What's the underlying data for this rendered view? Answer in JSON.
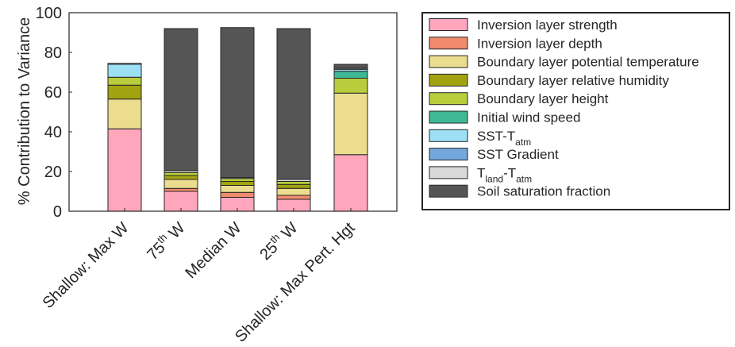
{
  "chart_data": {
    "type": "bar",
    "stacked": true,
    "ylabel": "% Contribution to Variance",
    "ylim": [
      0,
      100
    ],
    "yticks": [
      "0",
      "20",
      "40",
      "60",
      "80",
      "100"
    ],
    "grid": false,
    "legend_position": "right",
    "categories": [
      {
        "base": "Shallow: Max W",
        "sup": ""
      },
      {
        "base": "75",
        "sup": "th",
        "tail": " W"
      },
      {
        "base": "Median W",
        "sup": ""
      },
      {
        "base": "25",
        "sup": "th",
        "tail": " W"
      },
      {
        "base": "Shallow: Max Pert. Hgt",
        "sup": ""
      }
    ],
    "series": [
      {
        "name": "Inversion layer strength",
        "color": "#ffa6bc",
        "values": [
          41.5,
          10.0,
          7.0,
          6.0,
          28.5
        ]
      },
      {
        "name": "Inversion layer depth",
        "color": "#f08a6c",
        "values": [
          0,
          1.5,
          2.5,
          2.0,
          0
        ]
      },
      {
        "name": "Boundary layer potential temperature",
        "color": "#ecdc8e",
        "values": [
          15.0,
          4.5,
          3.5,
          3.5,
          31.0
        ]
      },
      {
        "name": "Boundary layer relative humidity",
        "color": "#a3a312",
        "values": [
          7.0,
          2.0,
          2.0,
          2.0,
          0
        ]
      },
      {
        "name": "Boundary layer height",
        "color": "#b9cd3c",
        "values": [
          4.0,
          1.5,
          1.5,
          1.5,
          7.5
        ]
      },
      {
        "name": "Initial wind speed",
        "color": "#3fb995",
        "values": [
          0,
          0,
          0,
          0,
          3.5
        ]
      },
      {
        "name": "SST-T",
        "sub": "atm",
        "color": "#9de0f5",
        "values": [
          6.5,
          0,
          0,
          0,
          1.0
        ]
      },
      {
        "name": "SST Gradient",
        "color": "#74a7db",
        "values": [
          0,
          0,
          0,
          0,
          0
        ]
      },
      {
        "name": "T",
        "sub": "land",
        "tail": "-T",
        "sub2": "atm",
        "color": "#d9d9d9",
        "values": [
          0.5,
          1.0,
          0.5,
          1.0,
          0.5
        ]
      },
      {
        "name": "Soil saturation fraction",
        "color": "#555555",
        "values": [
          0,
          71.5,
          75.5,
          76.0,
          2.0
        ]
      }
    ]
  }
}
